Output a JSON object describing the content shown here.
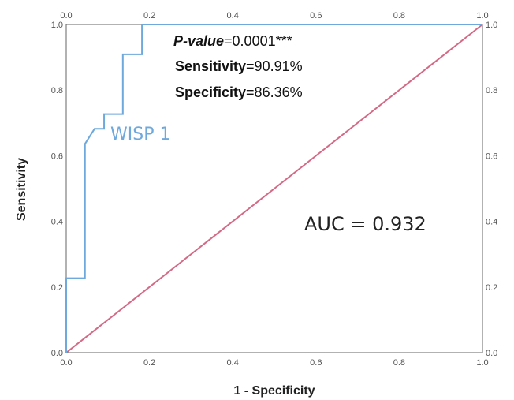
{
  "chart_data": {
    "type": "line",
    "xlabel": "1 - Specificity",
    "ylabel": "Sensitivity",
    "xlim": [
      0,
      1
    ],
    "ylim": [
      0,
      1
    ],
    "tick_labels": [
      "0.0",
      "0.2",
      "0.4",
      "0.6",
      "0.8",
      "1.0"
    ],
    "tick_values": [
      0,
      0.2,
      0.4,
      0.6,
      0.8,
      1.0
    ],
    "grid": false,
    "series": [
      {
        "name": "WISP 1",
        "color": "#6fa8dc",
        "points": [
          [
            0.0,
            0.0
          ],
          [
            0.0,
            0.227
          ],
          [
            0.045,
            0.227
          ],
          [
            0.045,
            0.636
          ],
          [
            0.068,
            0.682
          ],
          [
            0.091,
            0.682
          ],
          [
            0.091,
            0.727
          ],
          [
            0.136,
            0.727
          ],
          [
            0.136,
            0.818
          ],
          [
            0.136,
            0.909
          ],
          [
            0.182,
            0.909
          ],
          [
            0.182,
            1.0
          ],
          [
            1.0,
            1.0
          ]
        ]
      }
    ],
    "reference_line": {
      "color": "#d46a86",
      "points": [
        [
          0,
          0
        ],
        [
          1,
          1
        ]
      ]
    },
    "annotations": {
      "pvalue_label": "P-value",
      "pvalue_value": "=0.0001***",
      "sensitivity_label": "Sensitivity",
      "sensitivity_value": "=90.91%",
      "specificity_label": "Specificity",
      "specificity_value": "=86.36%",
      "auc": "AUC = 0.932"
    }
  }
}
